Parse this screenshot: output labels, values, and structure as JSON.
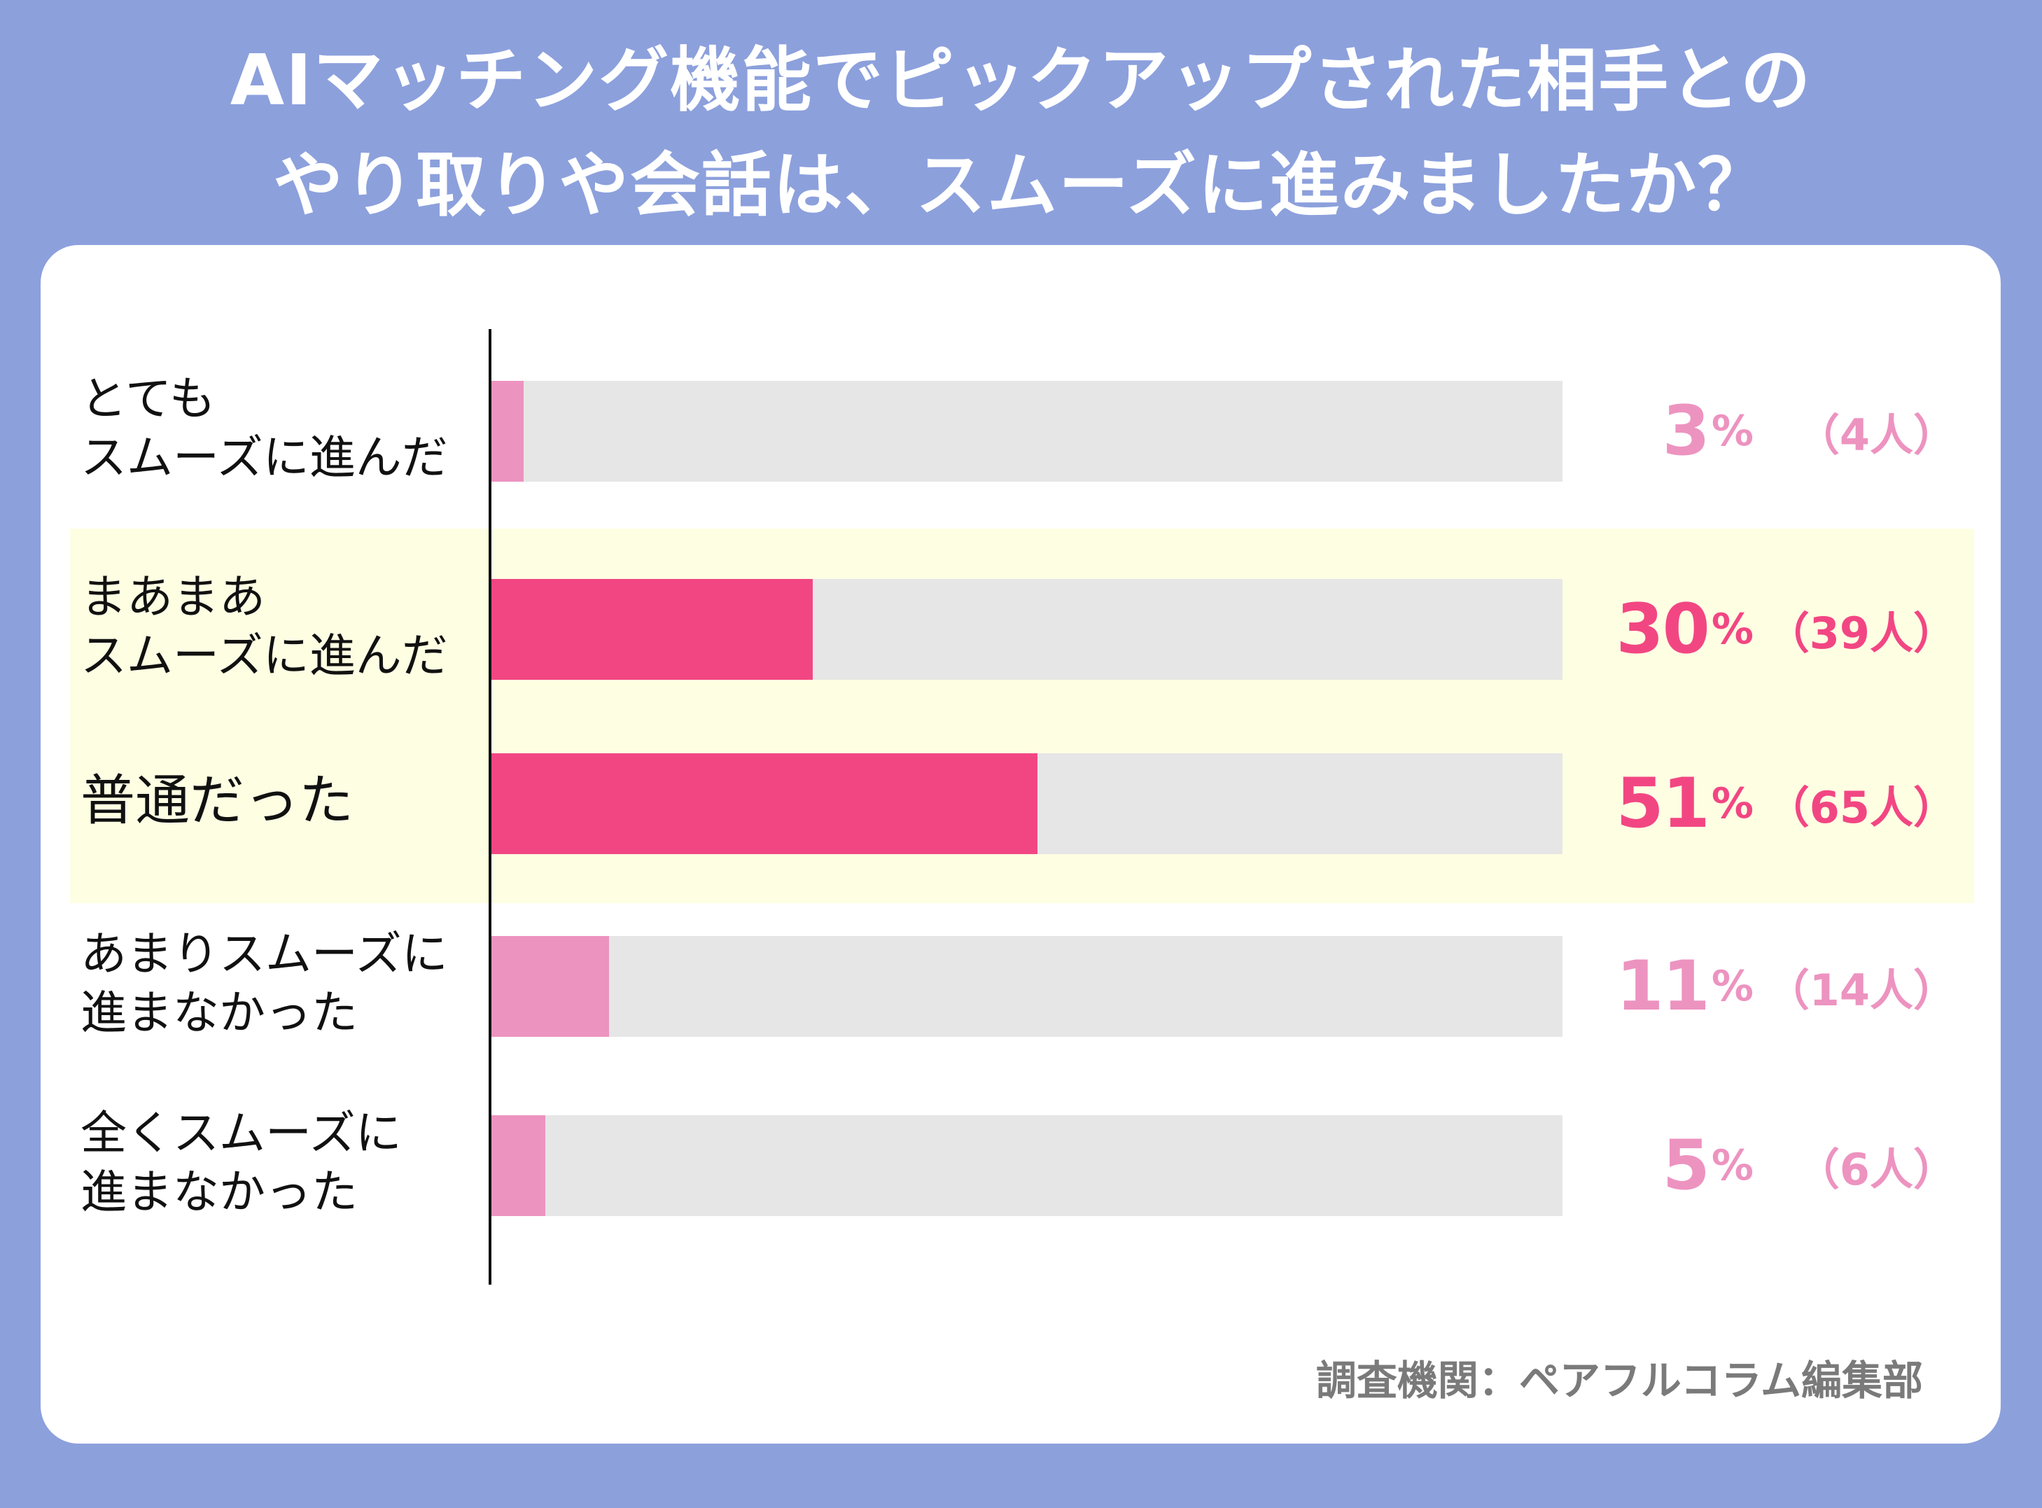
{
  "title": {
    "line1": "AIマッチング機能でピックアップされた相手との",
    "line2": "やり取りや会話は、スムーズに進みましたか？"
  },
  "chart_data": {
    "type": "bar",
    "orientation": "horizontal",
    "categories": [
      [
        "とても",
        "スムーズに進んだ"
      ],
      [
        "まあまあ",
        "スムーズに進んだ"
      ],
      [
        "普通だった"
      ],
      [
        "あまりスムーズに",
        "進まなかった"
      ],
      [
        "全くスムーズに",
        "進まなかった"
      ]
    ],
    "series": [
      {
        "values": [
          3,
          30,
          51,
          11,
          5
        ]
      }
    ],
    "counts": [
      4,
      39,
      65,
      14,
      6
    ],
    "value_labels": [
      "3",
      "30",
      "51",
      "11",
      "5"
    ],
    "count_labels": [
      "（4人）",
      "（39人）",
      "（65人）",
      "（14人）",
      "（6人）"
    ],
    "percent_sign": "%",
    "xlim": [
      0,
      100
    ],
    "grid": false,
    "highlighted_rows": [
      1,
      2
    ],
    "colors": {
      "highlight_bar": "#f24683",
      "normal_bar": "#ed93c0",
      "track": "#e6e6e6",
      "highlight_band": "#fefee3"
    }
  },
  "source": "調査機関：ペアフルコラム編集部",
  "colors": {
    "background": "#8ca0dc",
    "panel": "#ffffff"
  }
}
